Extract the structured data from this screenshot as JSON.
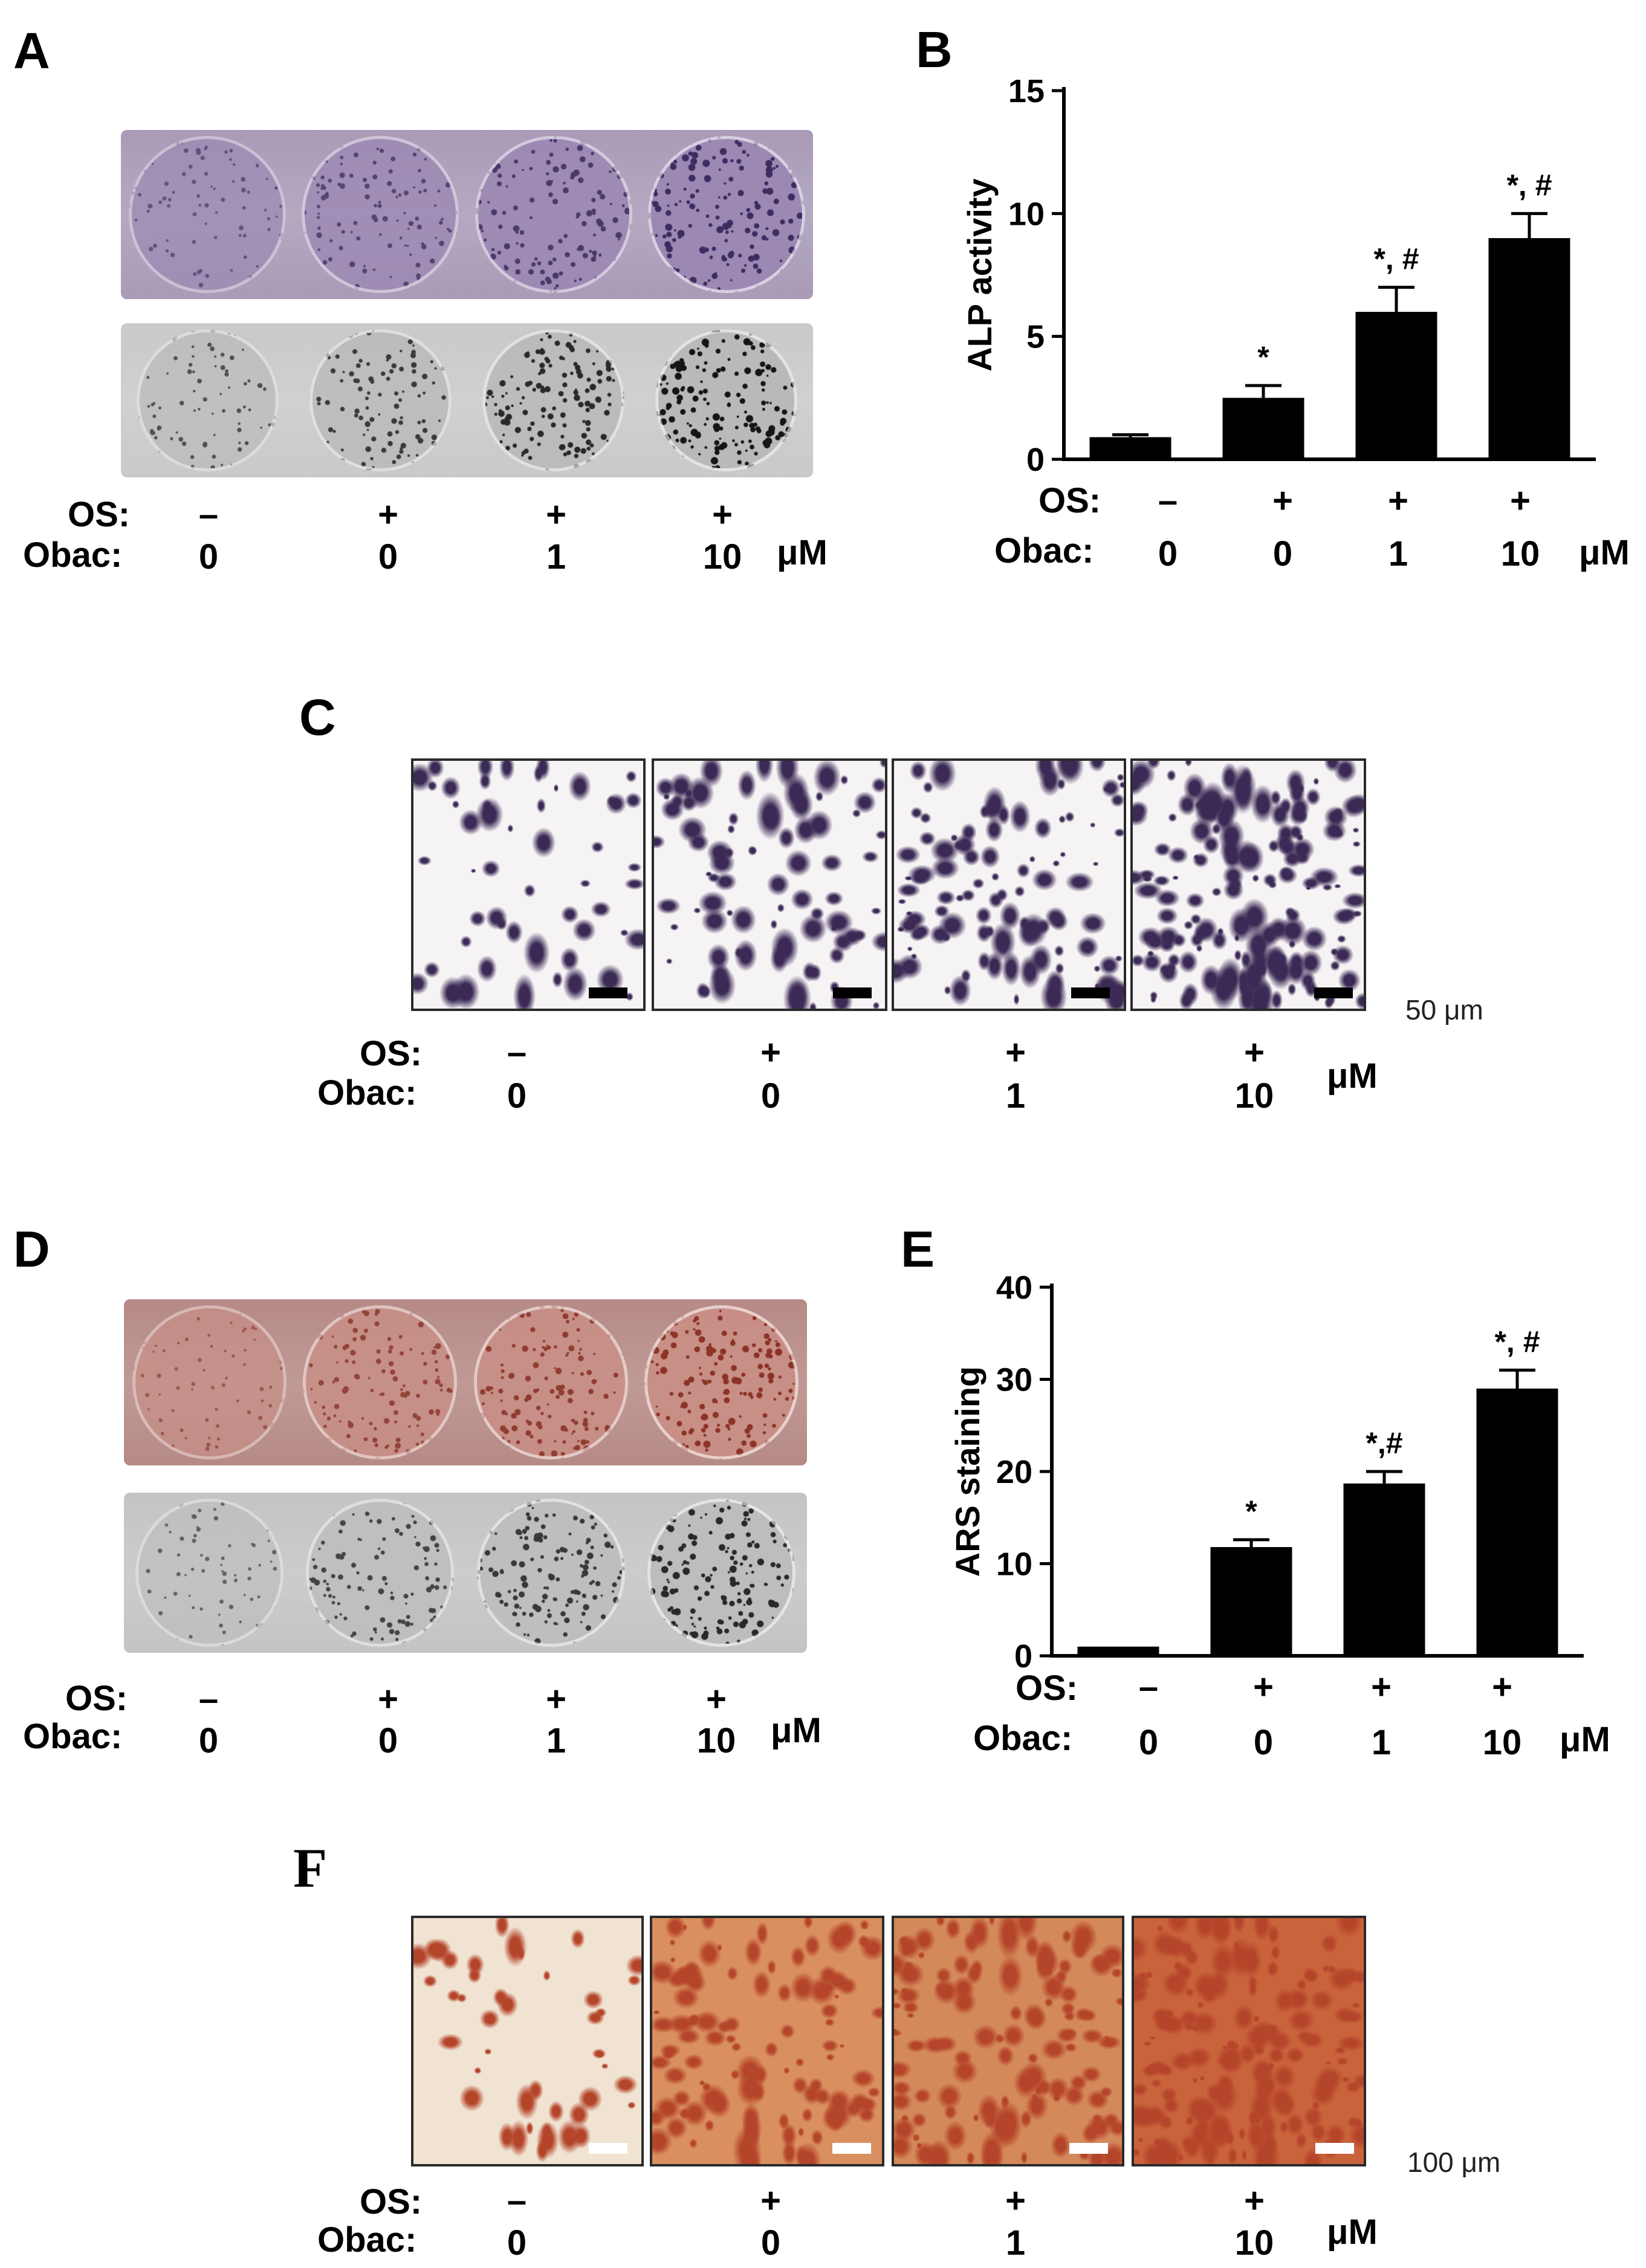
{
  "panels": {
    "A": {
      "letter": "A",
      "rows": {
        "os_label": "OS:",
        "obac_label": "Obac:"
      },
      "os": [
        "–",
        "+",
        "+",
        "+"
      ],
      "obac": [
        "0",
        "0",
        "1",
        "10"
      ],
      "unit": "μM",
      "plate_color": "#a99bb8",
      "gray_plate_color": "#c9c9c9",
      "stain_levels": [
        0.25,
        0.5,
        0.7,
        0.95
      ]
    },
    "B": {
      "letter": "B",
      "rows": {
        "os_label": "OS:",
        "obac_label": "Obac:"
      },
      "os": [
        "–",
        "+",
        "+",
        "+"
      ],
      "obac": [
        "0",
        "0",
        "1",
        "10"
      ],
      "unit": "μM"
    },
    "C": {
      "letter": "C",
      "rows": {
        "os_label": "OS:",
        "obac_label": "Obac:"
      },
      "os": [
        "–",
        "+",
        "+",
        "+"
      ],
      "obac": [
        "0",
        "0",
        "1",
        "10"
      ],
      "unit": "μM",
      "scale_label": "50 μm",
      "stain_color": "#3b2a55",
      "stain_levels": [
        0.2,
        0.4,
        0.55,
        0.95
      ]
    },
    "D": {
      "letter": "D",
      "rows": {
        "os_label": "OS:",
        "obac_label": "Obac:"
      },
      "os": [
        "–",
        "+",
        "+",
        "+"
      ],
      "obac": [
        "0",
        "0",
        "1",
        "10"
      ],
      "unit": "μM",
      "plate_color": "#b68a86",
      "gray_plate_color": "#c4c4c4",
      "stain_levels": [
        0.15,
        0.55,
        0.7,
        0.9
      ]
    },
    "E": {
      "letter": "E",
      "rows": {
        "os_label": "OS:",
        "obac_label": "Obac:"
      },
      "os": [
        "–",
        "+",
        "+",
        "+"
      ],
      "obac": [
        "0",
        "0",
        "1",
        "10"
      ],
      "unit": "μM"
    },
    "F": {
      "letter": "F",
      "rows": {
        "os_label": "OS:",
        "obac_label": "Obac:"
      },
      "os": [
        "–",
        "+",
        "+",
        "+"
      ],
      "obac": [
        "0",
        "0",
        "1",
        "10"
      ],
      "unit": "μM",
      "scale_label": "100 μm",
      "stain_color": "#b5452a",
      "stain_levels": [
        0.15,
        0.6,
        0.7,
        0.95
      ]
    }
  },
  "chart_data": [
    {
      "panel": "B",
      "type": "bar",
      "ylabel": "ALP activity",
      "ylim": [
        0,
        15
      ],
      "yticks": [
        0,
        5,
        10,
        15
      ],
      "values": [
        0.9,
        2.5,
        6.0,
        9.0
      ],
      "errors": [
        0.1,
        0.5,
        1.0,
        1.0
      ],
      "annotations": [
        "",
        "*",
        "*, #",
        "*, #"
      ],
      "bar_color": "#000000"
    },
    {
      "panel": "E",
      "type": "bar",
      "ylabel": "ARS staining",
      "ylim": [
        0,
        40
      ],
      "yticks": [
        0,
        10,
        20,
        30,
        40
      ],
      "values": [
        1.0,
        11.8,
        18.7,
        29.0
      ],
      "errors": [
        0.0,
        0.8,
        1.3,
        2.0
      ],
      "annotations": [
        "",
        "*",
        "*,#",
        "*, #"
      ],
      "bar_color": "#000000"
    }
  ]
}
